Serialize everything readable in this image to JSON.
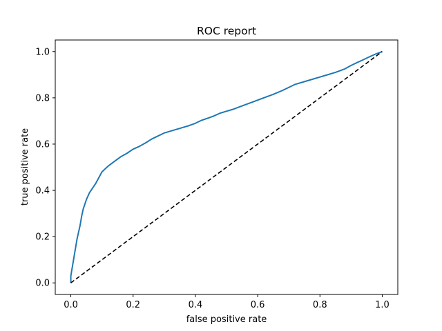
{
  "chart_data": {
    "type": "line",
    "title": "ROC report",
    "xlabel": "false positive rate",
    "ylabel": "true positive rate",
    "xlim": [
      -0.05,
      1.05
    ],
    "ylim": [
      -0.05,
      1.05
    ],
    "xticks": [
      "0.0",
      "0.2",
      "0.4",
      "0.6",
      "0.8",
      "1.0"
    ],
    "yticks": [
      "0.0",
      "0.2",
      "0.4",
      "0.6",
      "0.8",
      "1.0"
    ],
    "grid": false,
    "legend": "none",
    "series": [
      {
        "color": "#1f77b4",
        "style": "solid",
        "x": [
          0.0,
          0.0,
          0.005,
          0.01,
          0.015,
          0.02,
          0.025,
          0.03,
          0.035,
          0.04,
          0.045,
          0.05,
          0.06,
          0.07,
          0.08,
          0.09,
          0.1,
          0.12,
          0.14,
          0.16,
          0.18,
          0.2,
          0.22,
          0.24,
          0.26,
          0.28,
          0.3,
          0.33,
          0.36,
          0.38,
          0.4,
          0.42,
          0.44,
          0.46,
          0.48,
          0.5,
          0.52,
          0.55,
          0.58,
          0.6,
          0.62,
          0.65,
          0.68,
          0.7,
          0.72,
          0.75,
          0.78,
          0.8,
          0.82,
          0.85,
          0.88,
          0.9,
          0.92,
          0.94,
          0.96,
          0.98,
          1.0
        ],
        "y": [
          0.0,
          0.03,
          0.07,
          0.11,
          0.15,
          0.19,
          0.22,
          0.25,
          0.29,
          0.32,
          0.34,
          0.36,
          0.39,
          0.41,
          0.43,
          0.455,
          0.48,
          0.505,
          0.525,
          0.545,
          0.56,
          0.578,
          0.59,
          0.605,
          0.622,
          0.635,
          0.648,
          0.66,
          0.672,
          0.68,
          0.69,
          0.703,
          0.712,
          0.722,
          0.734,
          0.742,
          0.75,
          0.765,
          0.78,
          0.79,
          0.8,
          0.815,
          0.832,
          0.845,
          0.858,
          0.87,
          0.882,
          0.89,
          0.898,
          0.91,
          0.925,
          0.94,
          0.953,
          0.965,
          0.978,
          0.99,
          1.0
        ]
      },
      {
        "color": "#000000",
        "style": "dashed",
        "x": [
          0.0,
          1.0
        ],
        "y": [
          0.0,
          1.0
        ]
      }
    ]
  }
}
